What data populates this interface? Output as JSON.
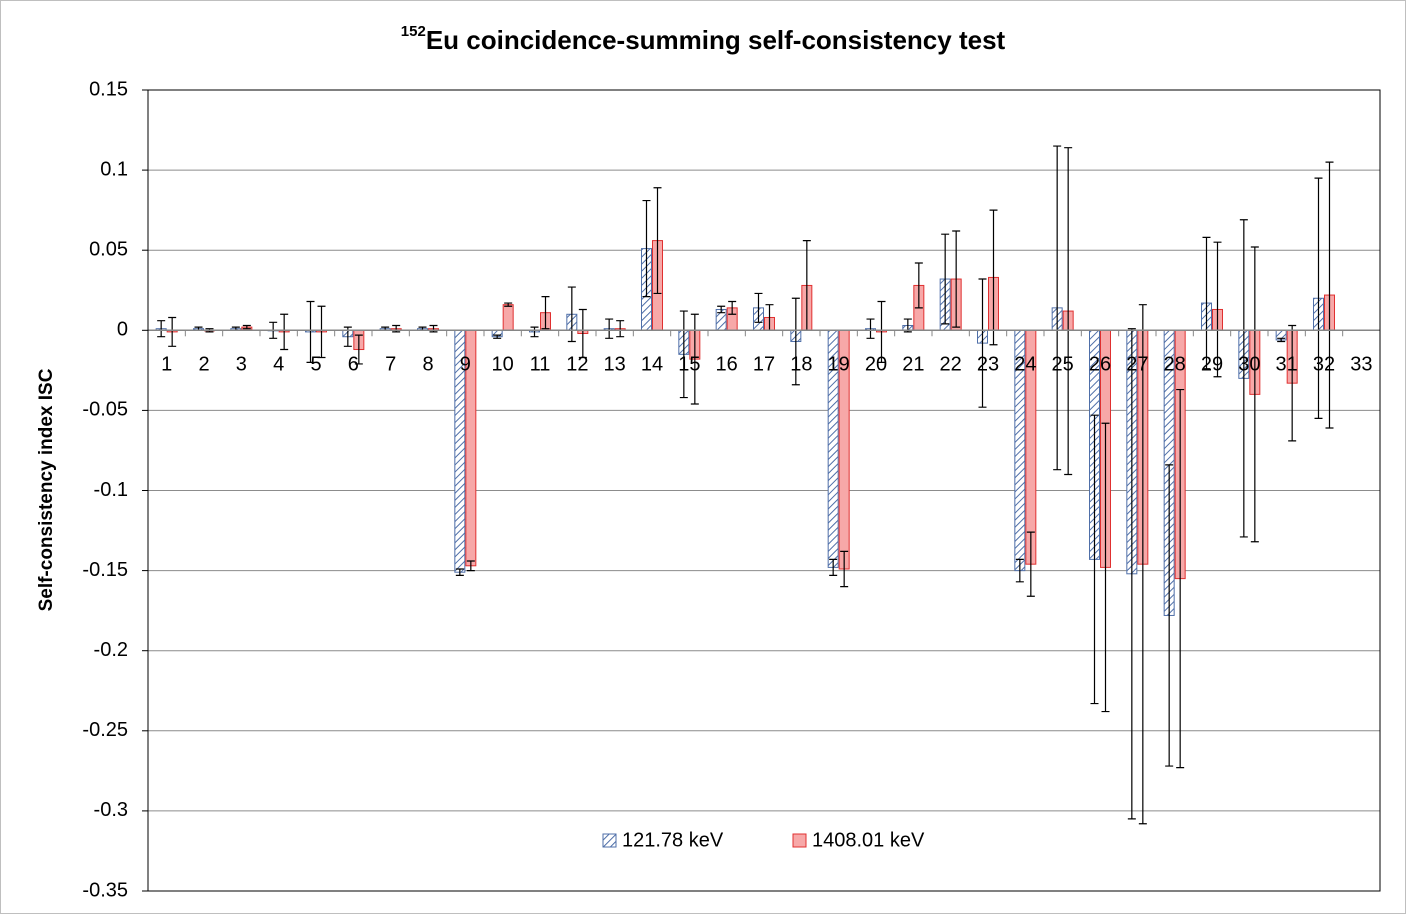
{
  "chart_data": {
    "type": "bar",
    "title_superscript": "152",
    "title": "Eu coincidence-summing self-consistency test",
    "y_label": "Self-consistency index ISC",
    "categories": [
      "1",
      "2",
      "3",
      "4",
      "5",
      "6",
      "7",
      "8",
      "9",
      "10",
      "11",
      "12",
      "13",
      "14",
      "15",
      "16",
      "17",
      "18",
      "19",
      "20",
      "21",
      "22",
      "23",
      "24",
      "25",
      "26",
      "27",
      "28",
      "29",
      "30",
      "31",
      "32",
      "33"
    ],
    "series": [
      {
        "name": "121.78 keV",
        "color": "#4f6fa8",
        "fill": "hatched",
        "values": [
          0.001,
          0.001,
          0.001,
          0.0,
          -0.001,
          -0.004,
          0.001,
          0.001,
          -0.151,
          -0.004,
          -0.001,
          0.01,
          0.001,
          0.051,
          -0.015,
          0.013,
          0.014,
          -0.007,
          -0.148,
          0.001,
          0.003,
          0.032,
          -0.008,
          -0.15,
          0.014,
          -0.143,
          -0.152,
          -0.178,
          0.017,
          -0.03,
          -0.006,
          0.02,
          null
        ],
        "errors": [
          0.005,
          0.001,
          0.001,
          0.005,
          0.019,
          0.006,
          0.001,
          0.001,
          0.002,
          0.001,
          0.003,
          0.017,
          0.006,
          0.03,
          0.027,
          0.002,
          0.009,
          0.027,
          0.005,
          0.006,
          0.004,
          0.028,
          0.04,
          0.007,
          0.101,
          0.09,
          0.153,
          0.094,
          0.041,
          0.099,
          0.001,
          0.075,
          null
        ]
      },
      {
        "name": "1408.01 keV",
        "color": "#e03030",
        "fill": "#f7a8a8",
        "values": [
          -0.001,
          0.0,
          0.002,
          -0.001,
          -0.001,
          -0.012,
          0.001,
          0.001,
          -0.147,
          0.016,
          0.011,
          -0.002,
          0.001,
          0.056,
          -0.018,
          0.014,
          0.008,
          0.028,
          -0.149,
          -0.001,
          0.028,
          0.032,
          0.033,
          -0.146,
          0.012,
          -0.148,
          -0.146,
          -0.155,
          0.013,
          -0.04,
          -0.033,
          0.022,
          null
        ],
        "errors": [
          0.009,
          0.001,
          0.001,
          0.011,
          0.016,
          0.009,
          0.002,
          0.002,
          0.003,
          0.001,
          0.01,
          0.015,
          0.005,
          0.033,
          0.028,
          0.004,
          0.008,
          0.028,
          0.011,
          0.019,
          0.014,
          0.03,
          0.042,
          0.02,
          0.102,
          0.09,
          0.162,
          0.118,
          0.042,
          0.092,
          0.036,
          0.083,
          null
        ]
      }
    ],
    "ylim": [
      -0.35,
      0.15
    ],
    "yticks": [
      0.15,
      0.1,
      0.05,
      0,
      -0.05,
      -0.1,
      -0.15,
      -0.2,
      -0.25,
      -0.3,
      -0.35
    ],
    "grid": true,
    "legend": "bottom"
  }
}
